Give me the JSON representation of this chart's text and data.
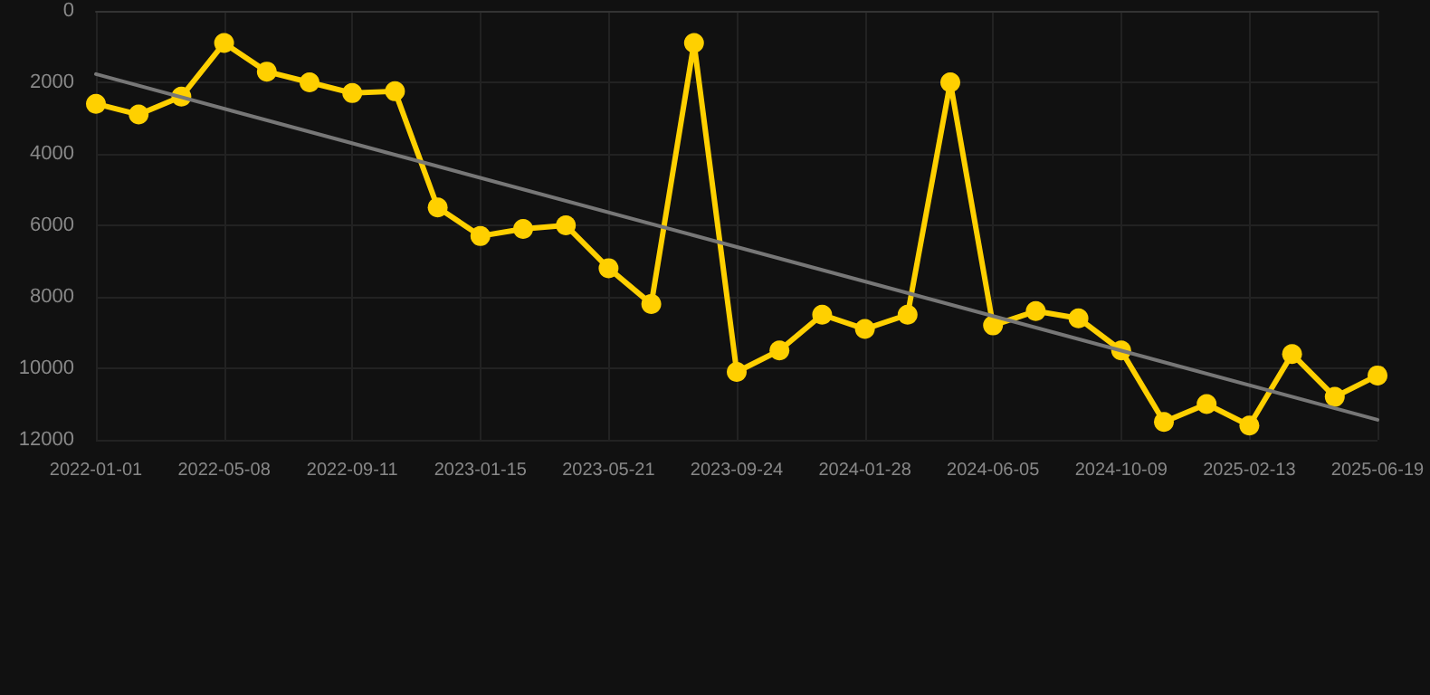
{
  "chart_data": {
    "type": "line",
    "categories": [
      "2022-01-01",
      null,
      null,
      "2022-05-08",
      null,
      null,
      "2022-09-11",
      null,
      null,
      "2023-01-15",
      null,
      null,
      "2023-05-21",
      null,
      null,
      "2023-09-24",
      null,
      null,
      "2024-01-28",
      null,
      null,
      "2024-06-05",
      null,
      null,
      "2024-10-09",
      null,
      null,
      "2025-02-13",
      null,
      null,
      "2025-06-19"
    ],
    "series": [
      {
        "color": "#ffd000",
        "values": [
          2600,
          2900,
          2400,
          900,
          1700,
          2000,
          2300,
          2250,
          5500,
          6300,
          6100,
          6000,
          7200,
          8200,
          900,
          10100,
          9500,
          8500,
          8900,
          8500,
          2000,
          8800,
          8400,
          8600,
          9500,
          11500,
          11000,
          11600,
          9600,
          10800,
          10200
        ]
      },
      {
        "type": "line",
        "color": "#777777",
        "marker": "none",
        "values": [
          1770,
          null,
          null,
          null,
          null,
          null,
          null,
          null,
          null,
          null,
          null,
          null,
          null,
          null,
          null,
          null,
          null,
          null,
          null,
          null,
          null,
          null,
          null,
          null,
          null,
          null,
          null,
          null,
          null,
          null,
          11440
        ]
      }
    ],
    "ylim": [
      12000,
      0
    ],
    "yticks": [
      0,
      2000,
      4000,
      6000,
      8000,
      10000,
      12000
    ],
    "grid": true,
    "marker": "circle",
    "line_style": "solid"
  }
}
